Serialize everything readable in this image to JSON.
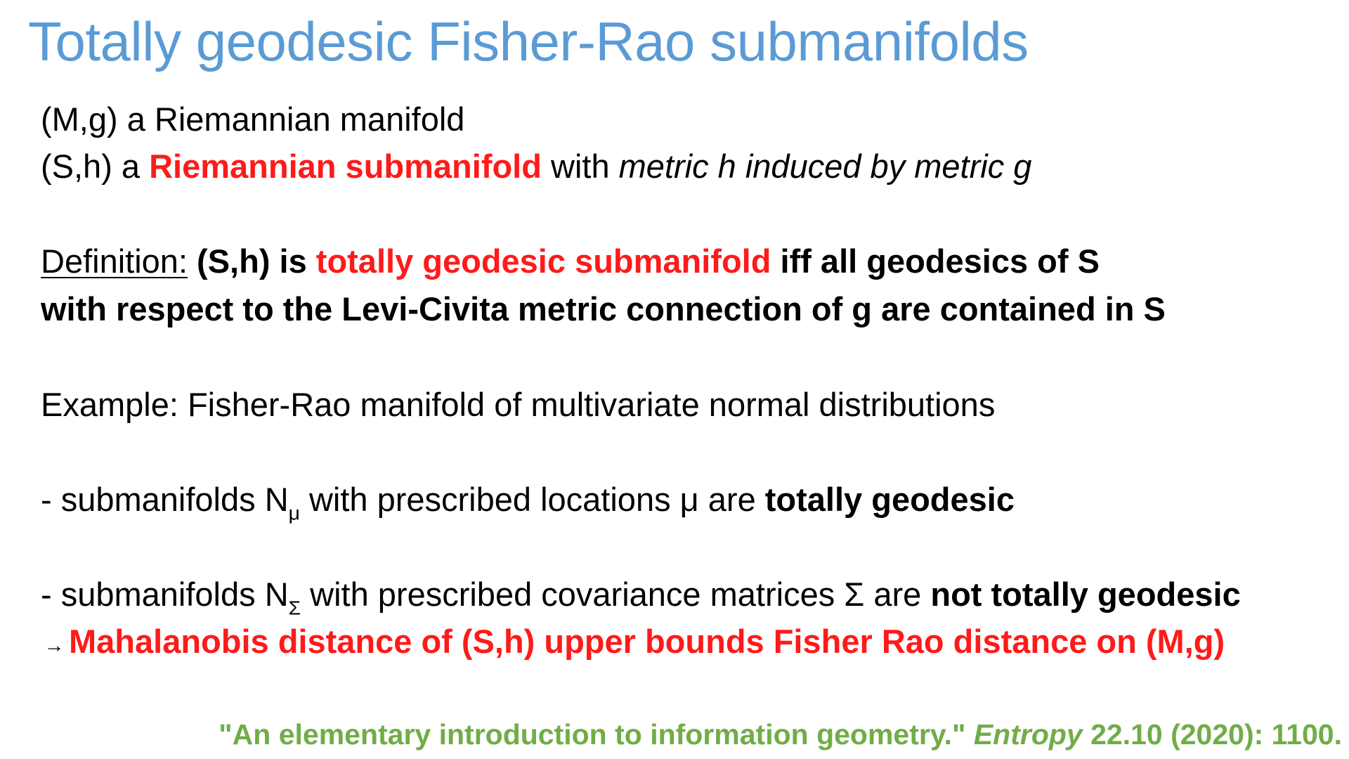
{
  "colors": {
    "title": "#5b9bd5",
    "highlight": "#ff1a1a",
    "citation": "#70ad47",
    "text": "#000000"
  },
  "title": "Totally geodesic Fisher-Rao submanifolds",
  "line1": "(M,g) a Riemannian manifold",
  "line2": {
    "prefix": "(S,h) a ",
    "highlight": "Riemannian submanifold",
    "mid": " with ",
    "italic": "metric h induced by metric g"
  },
  "definition": {
    "label": "Definition:",
    "bold1": " (S,h) is ",
    "highlight": "totally geodesic submanifold",
    "bold2": " iff all geodesics of S",
    "line2": "with respect to the Levi-Civita metric connection of g are contained in S"
  },
  "example": "Example: Fisher-Rao manifold of multivariate normal distributions",
  "bullet1": {
    "prefix": "- submanifolds N",
    "subscript": "μ",
    "mid": " with prescribed locations μ are ",
    "bold": "totally geodesic"
  },
  "bullet2": {
    "prefix": "- submanifolds N",
    "subscript": "Σ",
    "mid": " with prescribed covariance matrices  Σ are ",
    "bold": "not totally geodesic"
  },
  "conclusion": {
    "arrow": "→",
    "text": "Mahalanobis distance of (S,h) upper bounds Fisher Rao distance on (M,g)"
  },
  "citation": {
    "quote": "\"An elementary introduction to information geometry.\" ",
    "journal": "Entropy",
    "rest": " 22.10 (2020): 1100."
  }
}
